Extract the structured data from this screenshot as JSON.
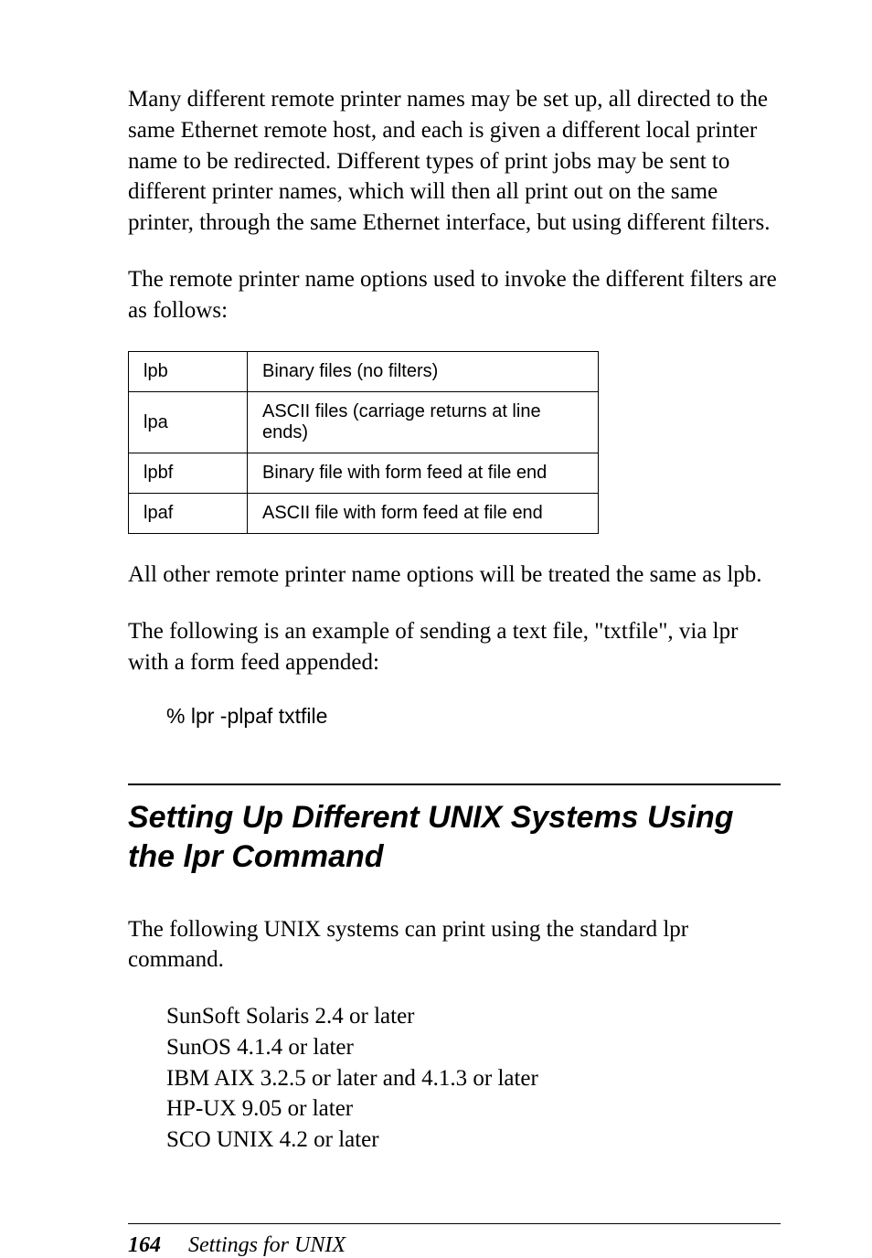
{
  "paragraphs": {
    "p1": "Many different remote printer names may be set up, all directed to the same Ethernet remote host, and each is given a different local printer name to be redirected. Different types of print jobs may be sent to different printer names, which will then all print out on the same printer, through the same Ethernet interface, but using different filters.",
    "p2": "The remote printer name options used to invoke the different filters are as follows:",
    "p3": "All other remote printer name options will be treated the same as lpb.",
    "p4": "The following is an example of sending a text file, \"txtfile\", via lpr with a form feed appended:",
    "p5": "The following UNIX systems can print using the standard lpr command."
  },
  "filter_table": {
    "rows": [
      {
        "name": "lpb",
        "desc": "Binary files (no filters)"
      },
      {
        "name": "lpa",
        "desc": "ASCII files (carriage returns at line ends)"
      },
      {
        "name": "lpbf",
        "desc": "Binary file with form feed at file end"
      },
      {
        "name": "lpaf",
        "desc": "ASCII file with form feed at file end"
      }
    ]
  },
  "command_example": "% lpr -plpaf txtfile",
  "section_heading": "Setting Up Different UNIX Systems Using the lpr Command",
  "systems_list": [
    "SunSoft Solaris 2.4 or later",
    "SunOS 4.1.4 or later",
    "IBM AIX 3.2.5 or later and 4.1.3 or later",
    "HP-UX 9.05 or later",
    "SCO UNIX 4.2 or later"
  ],
  "footer": {
    "page_number": "164",
    "chapter_title": "Settings for UNIX"
  }
}
